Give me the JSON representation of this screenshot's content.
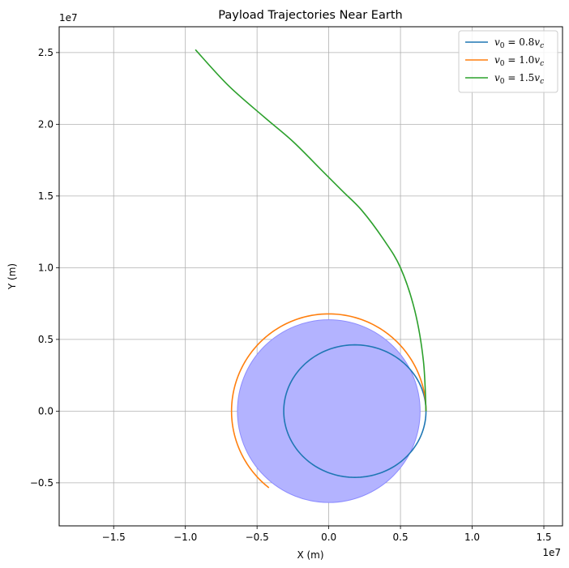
{
  "chart_data": {
    "type": "line",
    "title": "Payload Trajectories Near Earth",
    "xlabel": "X (m)",
    "ylabel": "Y (m)",
    "x_offset_label": "1e7",
    "y_offset_label": "1e7",
    "xlim": [
      -1.88,
      1.63
    ],
    "ylim": [
      -0.8,
      2.68
    ],
    "x_ticks": [
      -1.5,
      -1.0,
      -0.5,
      0.0,
      0.5,
      1.0,
      1.5
    ],
    "x_tick_labels": [
      "−1.5",
      "−1.0",
      "−0.5",
      "0.0",
      "0.5",
      "1.0",
      "1.5"
    ],
    "y_ticks": [
      -0.5,
      0.0,
      0.5,
      1.0,
      1.5,
      2.0,
      2.5
    ],
    "y_tick_labels": [
      "−0.5",
      "0.0",
      "0.5",
      "1.0",
      "1.5",
      "2.0",
      "2.5"
    ],
    "grid": true,
    "legend_position": "top-right",
    "earth": {
      "center": [
        0,
        0
      ],
      "radius": 0.637,
      "color": "#b3b3ff",
      "edge": "#8c8cff"
    },
    "series": [
      {
        "name": "v0 = 0.8vc",
        "legend_main": "v",
        "legend_sub": "0",
        "legend_mid": " = 0.8",
        "legend_tail": "v",
        "legend_tail_sub": "c",
        "color": "#1f77b4",
        "kind": "ellipse",
        "center": [
          0.182,
          0.0
        ],
        "semi_axes": [
          0.496,
          0.462
        ],
        "x": [
          0.678,
          0.642,
          0.539,
          0.38,
          0.182,
          -0.016,
          -0.175,
          -0.278,
          -0.314,
          -0.278,
          -0.175,
          -0.016,
          0.182,
          0.38,
          0.539,
          0.642,
          0.678
        ],
        "y": [
          0.0,
          0.177,
          0.327,
          0.427,
          0.462,
          0.427,
          0.327,
          0.177,
          0.0,
          -0.177,
          -0.327,
          -0.427,
          -0.462,
          -0.427,
          -0.327,
          -0.177,
          0.0
        ]
      },
      {
        "name": "v0 = 1.0vc",
        "legend_main": "v",
        "legend_sub": "0",
        "legend_mid": " = 1.0",
        "legend_tail": "v",
        "legend_tail_sub": "c",
        "color": "#ff7f0e",
        "kind": "arc",
        "radius": 0.678,
        "angle_start_deg": 0,
        "angle_end_deg": 232,
        "x": [
          0.678,
          0.587,
          0.339,
          0.0,
          -0.339,
          -0.587,
          -0.678,
          -0.587,
          -0.417
        ],
        "y": [
          0.0,
          0.339,
          0.587,
          0.678,
          0.587,
          0.339,
          0.0,
          -0.339,
          -0.534
        ]
      },
      {
        "name": "v0 = 1.5vc",
        "legend_main": "v",
        "legend_sub": "0",
        "legend_mid": " = 1.5",
        "legend_tail": "v",
        "legend_tail_sub": "c",
        "color": "#2ca02c",
        "kind": "polyline",
        "x": [
          0.678,
          0.66,
          0.6,
          0.5,
          0.38,
          0.23,
          0.1,
          -0.05,
          -0.25,
          -0.45,
          -0.7,
          -0.93
        ],
        "y": [
          0.0,
          0.35,
          0.7,
          1.0,
          1.2,
          1.4,
          1.53,
          1.68,
          1.88,
          2.05,
          2.27,
          2.52
        ]
      }
    ]
  }
}
